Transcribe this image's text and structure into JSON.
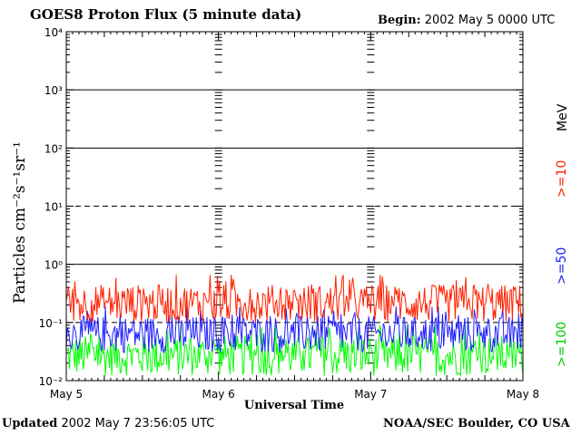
{
  "header": {
    "title": "GOES8 Proton Flux (5 minute data)",
    "begin_label": "Begin:",
    "begin_value": "2002 May 5 0000 UTC"
  },
  "footer": {
    "updated_label": "Updated",
    "updated_value": "2002 May  7 23:56:05 UTC",
    "credit": "NOAA/SEC Boulder, CO USA"
  },
  "chart_data": {
    "type": "line",
    "title": "GOES8 Proton Flux (5 minute data)",
    "xlabel": "Universal Time",
    "ylabel": "Particles cm⁻²s⁻¹sr⁻¹",
    "yscale": "log",
    "ylim": [
      0.01,
      10000
    ],
    "ytick_labels": [
      "10⁻²",
      "10⁻¹",
      "10⁰",
      "10¹",
      "10²",
      "10³",
      "10⁴"
    ],
    "xtick_labels": [
      "May 5",
      "May 6",
      "May 7",
      "May 8"
    ],
    "xlim_days": [
      0,
      3
    ],
    "legend_unit": "MeV",
    "series": [
      {
        "name": ">=10",
        "color": "#ff2000",
        "typical_low": 0.1,
        "typical_high": 0.45
      },
      {
        "name": ">=50",
        "color": "#2020ff",
        "typical_low": 0.03,
        "typical_high": 0.13
      },
      {
        "name": ">=100",
        "color": "#00ff00",
        "typical_low": 0.012,
        "typical_high": 0.06
      }
    ],
    "grid": "horizontal decades; dashed at 10⁻¹ and 10¹",
    "legend_placement": "right, vertical"
  }
}
